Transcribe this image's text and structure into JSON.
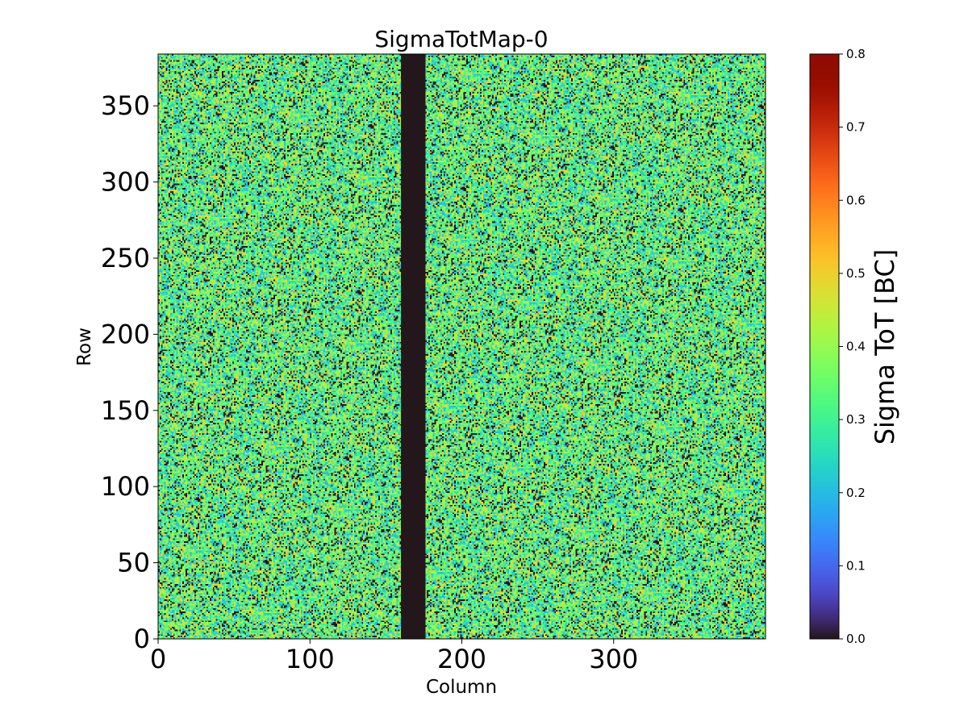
{
  "chart_data": {
    "type": "heatmap",
    "title": "SigmaTotMap-0",
    "xlabel": "Column",
    "ylabel": "Row",
    "colorbar_label": "Sigma ToT [BC]",
    "colormap": "turbo",
    "xlim": [
      0,
      400
    ],
    "ylim": [
      0,
      384
    ],
    "clim": [
      0.0,
      0.8
    ],
    "xticks": [
      0,
      100,
      200,
      300
    ],
    "xtick_labels": [
      "0",
      "100",
      "200",
      "300"
    ],
    "yticks": [
      0,
      50,
      100,
      150,
      200,
      250,
      300,
      350
    ],
    "ytick_labels": [
      "0",
      "50",
      "100",
      "150",
      "200",
      "250",
      "300",
      "350"
    ],
    "colorbar_ticks": [
      0.0,
      0.1,
      0.2,
      0.3,
      0.4,
      0.5,
      0.6,
      0.7,
      0.8
    ],
    "colorbar_tick_labels": [
      "0.0",
      "0.1",
      "0.2",
      "0.3",
      "0.4",
      "0.5",
      "0.6",
      "0.7",
      "0.8"
    ],
    "n_columns": 400,
    "n_rows": 384,
    "zero_column_band": [
      160,
      176
    ],
    "value_distribution": [
      {
        "value": 0.0,
        "weight": 0.14
      },
      {
        "value": 0.2,
        "weight": 0.14
      },
      {
        "value": 0.25,
        "weight": 0.12
      },
      {
        "value": 0.3,
        "weight": 0.16
      },
      {
        "value": 0.35,
        "weight": 0.12
      },
      {
        "value": 0.4,
        "weight": 0.14
      },
      {
        "value": 0.45,
        "weight": 0.1
      },
      {
        "value": 0.5,
        "weight": 0.08
      }
    ]
  }
}
